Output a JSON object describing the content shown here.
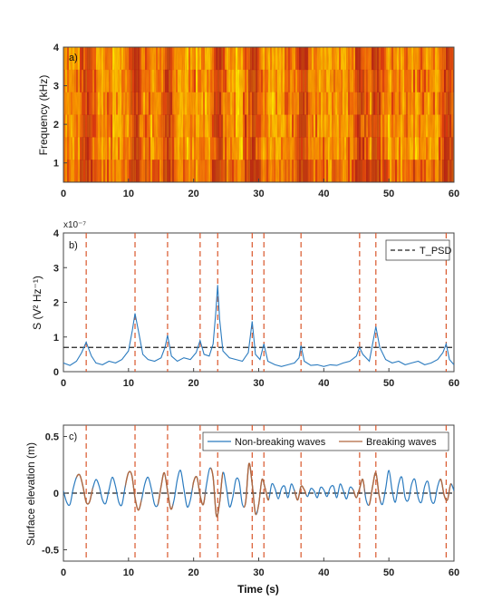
{
  "chart_data": [
    {
      "type": "heatmap",
      "panel_label": "a)",
      "ylabel": "Frequency (kHz)",
      "xlim": [
        0,
        60
      ],
      "ylim": [
        0.5,
        4
      ],
      "xticks": [
        "0",
        "10",
        "20",
        "30",
        "40",
        "50",
        "60"
      ],
      "yticks": [
        "1",
        "2",
        "3",
        "4"
      ],
      "colormap": [
        "#fff200",
        "#fcc200",
        "#f88e00",
        "#ef5a0a",
        "#d62a12",
        "#b01616"
      ],
      "intense_bands_s": [
        3.5,
        11,
        16,
        23.7,
        29,
        36.8,
        45.5,
        48,
        58.8
      ]
    },
    {
      "type": "line",
      "panel_label": "b)",
      "ylabel": "S (V² Hz⁻¹)",
      "y_exponent": "x10⁻⁷",
      "xlim": [
        0,
        60
      ],
      "ylim": [
        0,
        4
      ],
      "xticks": [
        "0",
        "10",
        "20",
        "30",
        "40",
        "50",
        "60"
      ],
      "yticks": [
        "0",
        "1",
        "2",
        "3",
        "4"
      ],
      "threshold": {
        "name": "T_PSD",
        "value": 0.7
      },
      "events_s": [
        3.5,
        11,
        16,
        21,
        23.7,
        29,
        30.8,
        36.5,
        45.5,
        48,
        58.8
      ],
      "series": [
        {
          "color": "#2b7bbf",
          "x": [
            0,
            1,
            2,
            2.8,
            3.5,
            4.3,
            5,
            6,
            7,
            8,
            9,
            10,
            10.6,
            11,
            11.6,
            12.2,
            13,
            14,
            15,
            15.6,
            16,
            16.6,
            17.5,
            18.5,
            19.5,
            20.4,
            21,
            21.6,
            22.4,
            23,
            23.4,
            23.7,
            24,
            24.5,
            25.5,
            26.5,
            27.5,
            28.4,
            29,
            29.5,
            30.2,
            30.8,
            31.4,
            32.5,
            33.5,
            34.5,
            35.5,
            36.2,
            36.5,
            37,
            38,
            39,
            40,
            41,
            42,
            43,
            44,
            45,
            45.5,
            46,
            47,
            47.5,
            48,
            48.6,
            49.5,
            50.5,
            51.5,
            52.5,
            53.5,
            54.5,
            55.5,
            56.5,
            57.5,
            58.3,
            58.8,
            59.3,
            60
          ],
          "y": [
            0.25,
            0.18,
            0.3,
            0.55,
            0.85,
            0.45,
            0.25,
            0.2,
            0.3,
            0.25,
            0.35,
            0.6,
            1.2,
            1.68,
            1.1,
            0.5,
            0.35,
            0.3,
            0.4,
            0.7,
            1.05,
            0.45,
            0.3,
            0.4,
            0.35,
            0.55,
            0.9,
            0.5,
            0.45,
            0.8,
            1.7,
            2.5,
            1.5,
            0.6,
            0.4,
            0.35,
            0.3,
            0.55,
            1.45,
            0.5,
            0.35,
            0.8,
            0.3,
            0.2,
            0.15,
            0.2,
            0.25,
            0.4,
            0.75,
            0.3,
            0.18,
            0.2,
            0.15,
            0.2,
            0.18,
            0.25,
            0.3,
            0.45,
            0.7,
            0.5,
            0.3,
            0.8,
            1.3,
            0.7,
            0.35,
            0.25,
            0.3,
            0.2,
            0.25,
            0.3,
            0.2,
            0.25,
            0.35,
            0.55,
            0.8,
            0.35,
            0.2
          ]
        }
      ]
    },
    {
      "type": "line",
      "panel_label": "c)",
      "ylabel": "Surface elevation (m)",
      "xlabel": "Time (s)",
      "xlim": [
        0,
        60
      ],
      "ylim": [
        -0.6,
        0.6
      ],
      "xticks": [
        "0",
        "10",
        "20",
        "30",
        "40",
        "50",
        "60"
      ],
      "yticks": [
        "-0.5",
        "0",
        "0.5"
      ],
      "zero_line": 0,
      "events_s": [
        3.5,
        11,
        16,
        21,
        23.7,
        29,
        30.8,
        36.5,
        45.5,
        48,
        58.8
      ],
      "legend_position": "top-right",
      "series": [
        {
          "name": "Non-breaking waves",
          "color": "#2b7bbf"
        },
        {
          "name": "Breaking waves",
          "color": "#b0673e",
          "windows_s": [
            [
              2,
              4.5
            ],
            [
              9.5,
              12
            ],
            [
              14.5,
              16.8
            ],
            [
              19.8,
              21.8
            ],
            [
              22.6,
              24.5
            ],
            [
              27.7,
              29.7
            ],
            [
              29.8,
              31.6
            ],
            [
              35.5,
              37.3
            ],
            [
              44.5,
              46.3
            ],
            [
              46.9,
              48.7
            ],
            [
              57.8,
              59.6
            ]
          ]
        }
      ],
      "x": [
        0,
        0.5,
        1,
        1.5,
        2,
        2.5,
        3,
        3.5,
        4,
        4.5,
        5,
        5.5,
        6,
        6.5,
        7,
        7.5,
        8,
        8.5,
        9,
        9.5,
        10,
        10.5,
        11,
        11.5,
        12,
        12.5,
        13,
        13.5,
        14,
        14.5,
        15,
        15.5,
        16,
        16.5,
        17,
        17.5,
        18,
        18.5,
        19,
        19.5,
        20,
        20.5,
        21,
        21.5,
        22,
        22.5,
        23,
        23.5,
        24,
        24.5,
        25,
        25.5,
        26,
        26.5,
        27,
        27.5,
        28,
        28.5,
        29,
        29.5,
        30,
        30.5,
        31,
        31.5,
        32,
        32.5,
        33,
        33.5,
        34,
        34.5,
        35,
        35.5,
        36,
        36.5,
        37,
        37.5,
        38,
        38.5,
        39,
        39.5,
        40,
        40.5,
        41,
        41.5,
        42,
        42.5,
        43,
        43.5,
        44,
        44.5,
        45,
        45.5,
        46,
        46.5,
        47,
        47.5,
        48,
        48.5,
        49,
        49.5,
        50,
        50.5,
        51,
        51.5,
        52,
        52.5,
        53,
        53.5,
        54,
        54.5,
        55,
        55.5,
        56,
        56.5,
        57,
        57.5,
        58,
        58.5,
        59,
        59.5,
        60
      ],
      "y": [
        0.02,
        -0.08,
        -0.1,
        0.04,
        0.14,
        0.16,
        0.06,
        -0.08,
        -0.08,
        0.04,
        0.12,
        0.06,
        -0.06,
        -0.09,
        0.03,
        0.14,
        0.06,
        -0.08,
        -0.1,
        0.06,
        0.18,
        0.16,
        -0.04,
        -0.15,
        -0.06,
        0.08,
        0.14,
        0.04,
        -0.1,
        -0.1,
        0.06,
        0.18,
        0.02,
        -0.14,
        -0.06,
        0.12,
        0.2,
        0.04,
        -0.12,
        -0.06,
        0.1,
        0.14,
        -0.02,
        -0.1,
        0.08,
        0.22,
        0.14,
        -0.2,
        -0.08,
        0.18,
        0.06,
        -0.12,
        -0.04,
        0.12,
        0.1,
        -0.1,
        -0.08,
        0.26,
        0.08,
        -0.18,
        -0.1,
        0.12,
        0.04,
        -0.06,
        0.08,
        0.04,
        -0.05,
        0.04,
        0.06,
        -0.04,
        0.08,
        0.02,
        -0.06,
        0.06,
        0.03,
        -0.03,
        0.04,
        0.02,
        -0.04,
        0.05,
        0.03,
        -0.03,
        0.05,
        0.06,
        -0.04,
        0.08,
        0.02,
        -0.05,
        0.05,
        0.03,
        -0.04,
        0.04,
        0.12,
        -0.06,
        -0.1,
        0.06,
        0.18,
        -0.02,
        -0.1,
        0.04,
        0.2,
        0.02,
        -0.08,
        0.08,
        0.14,
        -0.04,
        -0.06,
        0.08,
        0.12,
        -0.04,
        -0.08,
        0.06,
        0.1,
        -0.06,
        -0.08,
        0.06,
        0.12,
        -0.02,
        -0.06,
        0.08,
        0.02
      ]
    }
  ]
}
